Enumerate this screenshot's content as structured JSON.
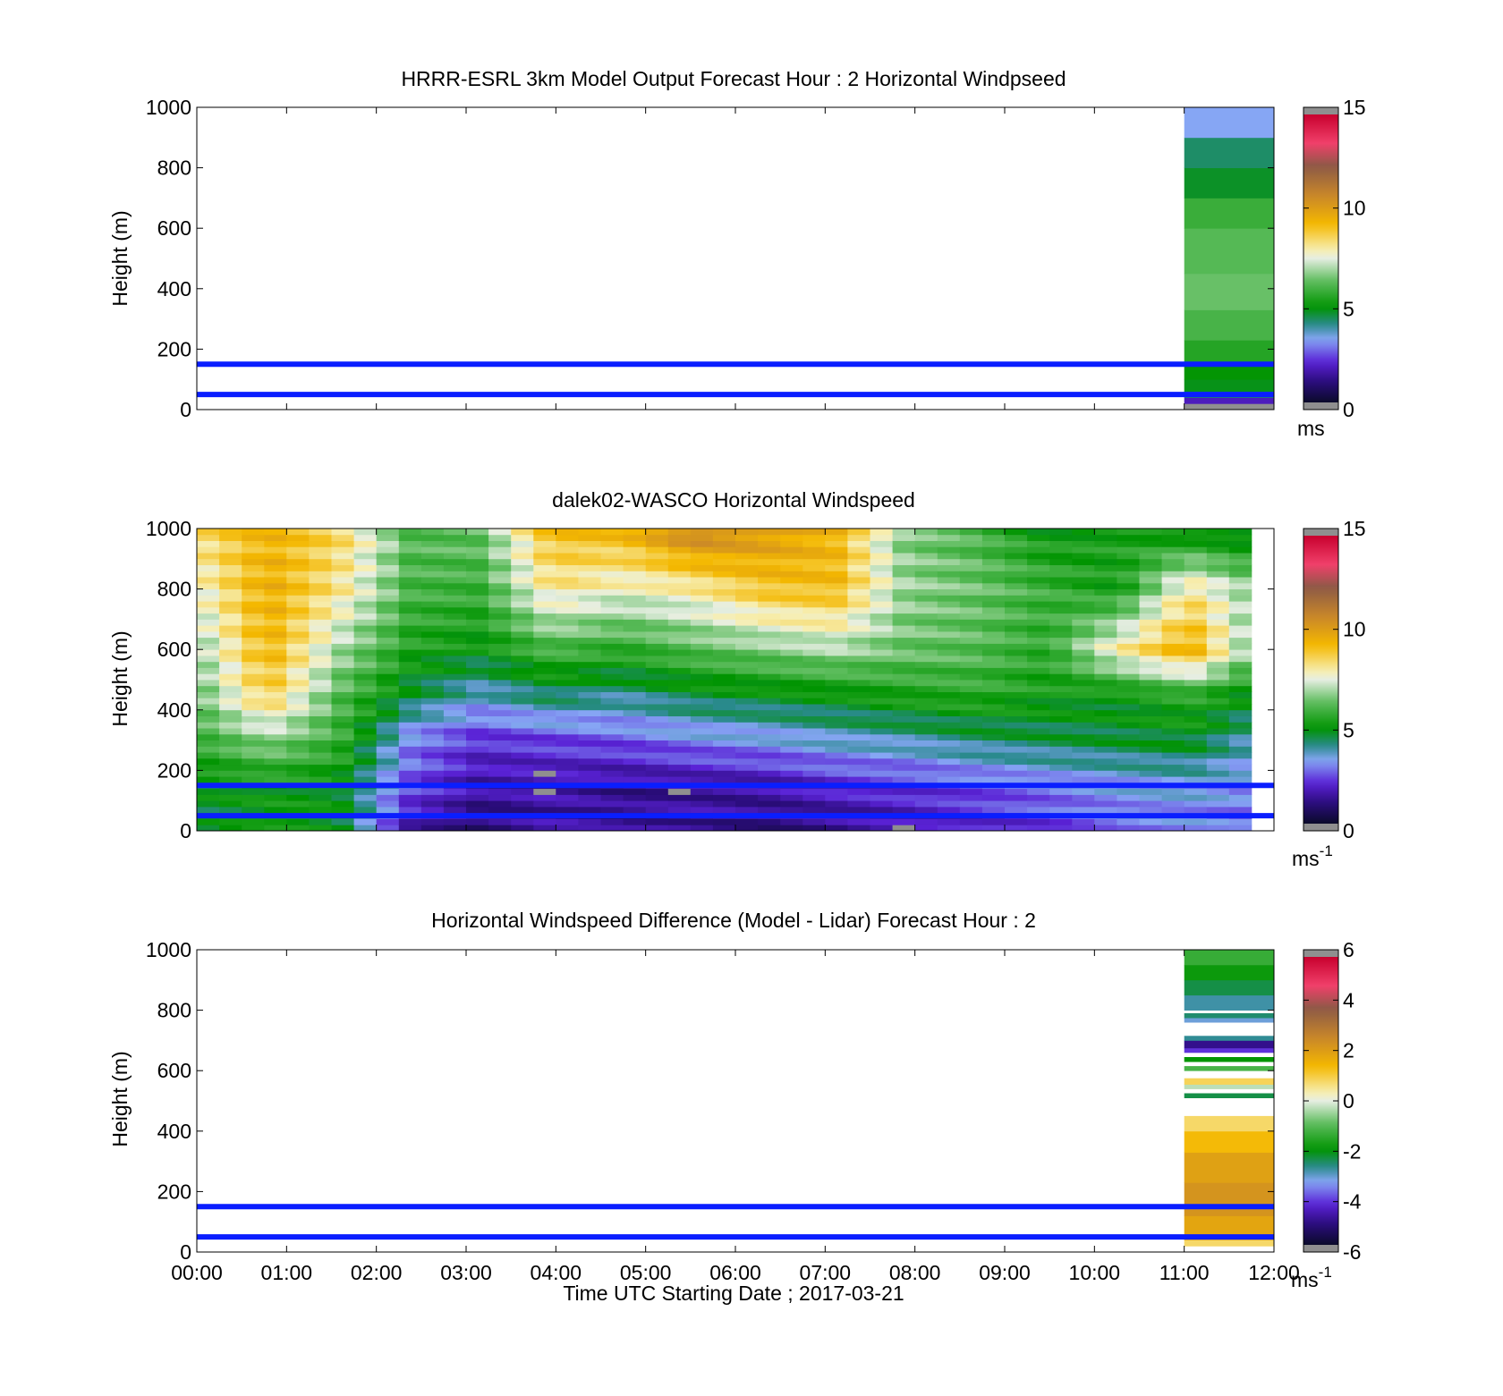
{
  "figure": {
    "xlabel": "Time UTC  Starting Date ; 2017-03-21",
    "reference_lines_m": [
      50,
      150
    ],
    "reference_line_color": "#0a1eff"
  },
  "chart_data": [
    {
      "type": "heatmap",
      "title": "HRRR-ESRL 3km Model Output   Forecast Hour : 2 Horizontal Windpseed",
      "ylabel": "Height (m)",
      "ylim": [
        0,
        1000
      ],
      "yticks": [
        "0",
        "200",
        "400",
        "600",
        "800",
        "1000"
      ],
      "xlim": [
        "00:00",
        "12:00"
      ],
      "xticks": [
        "00:00",
        "01:00",
        "02:00",
        "03:00",
        "04:00",
        "05:00",
        "06:00",
        "07:00",
        "08:00",
        "09:00",
        "10:00",
        "11:00",
        "12:00"
      ],
      "show_xticklabels": false,
      "colorbar": {
        "range": [
          0,
          15
        ],
        "ticks": [
          "0",
          "5",
          "10",
          "15"
        ],
        "label": "ms",
        "label_sup": ""
      },
      "columns": [
        {
          "t_start": 11.0,
          "t_end": 12.0,
          "layers": [
            {
              "z0": 0,
              "z1": 20,
              "v": -1
            },
            {
              "z0": 20,
              "z1": 40,
              "v": 1.8
            },
            {
              "z0": 40,
              "z1": 60,
              "v": 4.3
            },
            {
              "z0": 60,
              "z1": 100,
              "v": 4.8
            },
            {
              "z0": 100,
              "z1": 150,
              "v": 5.0
            },
            {
              "z0": 150,
              "z1": 230,
              "v": 5.5
            },
            {
              "z0": 230,
              "z1": 330,
              "v": 6.0
            },
            {
              "z0": 330,
              "z1": 450,
              "v": 6.4
            },
            {
              "z0": 450,
              "z1": 600,
              "v": 6.2
            },
            {
              "z0": 600,
              "z1": 700,
              "v": 5.8
            },
            {
              "z0": 700,
              "z1": 800,
              "v": 4.7
            },
            {
              "z0": 800,
              "z1": 900,
              "v": 4.3
            },
            {
              "z0": 900,
              "z1": 1000,
              "v": 3.3
            }
          ]
        }
      ]
    },
    {
      "type": "heatmap",
      "title": "dalek02-WASCO  Horizontal Windspeed",
      "ylabel": "Height (m)",
      "ylim": [
        0,
        1000
      ],
      "yticks": [
        "0",
        "200",
        "400",
        "600",
        "800",
        "1000"
      ],
      "xlim": [
        "00:00",
        "12:00"
      ],
      "xticks": [
        "00:00",
        "01:00",
        "02:00",
        "03:00",
        "04:00",
        "05:00",
        "06:00",
        "07:00",
        "08:00",
        "09:00",
        "10:00",
        "11:00",
        "12:00"
      ],
      "show_xticklabels": false,
      "colorbar": {
        "range": [
          0,
          15
        ],
        "ticks": [
          "0",
          "5",
          "10",
          "15"
        ],
        "label": "ms",
        "label_sup": "-1"
      },
      "time_step_hours": 0.25,
      "height_step_m": 20,
      "columns_end_hour": 11.85,
      "profiles": [
        {
          "z": 0,
          "v": [
            4.5,
            5.0,
            4.8,
            1.6,
            1.0,
            1.5,
            1.2,
            1.4,
            1.1,
            1.3,
            1.6,
            1.8,
            2.2,
            3.0,
            3.0,
            2.6
          ]
        },
        {
          "z": 150,
          "v": [
            4.8,
            5.1,
            5.0,
            2.6,
            1.5,
            1.6,
            1.3,
            1.5,
            1.6,
            2.0,
            2.2,
            2.6,
            3.0,
            3.2,
            3.4,
            3.0
          ]
        },
        {
          "z": 300,
          "v": [
            5.8,
            6.8,
            5.8,
            3.0,
            2.2,
            2.4,
            2.6,
            3.0,
            3.2,
            3.6,
            3.8,
            4.2,
            4.4,
            4.6,
            4.8,
            3.6
          ]
        },
        {
          "z": 450,
          "v": [
            6.4,
            8.8,
            6.2,
            4.6,
            3.6,
            4.4,
            4.0,
            4.6,
            4.8,
            5.0,
            5.4,
            5.6,
            5.2,
            5.0,
            5.6,
            4.8
          ]
        },
        {
          "z": 600,
          "v": [
            6.8,
            9.4,
            7.0,
            5.4,
            5.0,
            6.0,
            5.6,
            6.2,
            6.6,
            7.0,
            6.4,
            6.2,
            5.6,
            8.0,
            9.6,
            6.2
          ]
        },
        {
          "z": 800,
          "v": [
            7.6,
            9.6,
            8.2,
            6.0,
            5.8,
            8.2,
            7.6,
            8.0,
            9.0,
            9.2,
            6.8,
            6.4,
            5.8,
            5.2,
            8.2,
            6.6
          ]
        },
        {
          "z": 1000,
          "v": [
            8.4,
            9.4,
            8.6,
            6.2,
            6.4,
            9.2,
            9.4,
            11.0,
            10.2,
            9.4,
            6.6,
            6.0,
            5.0,
            5.4,
            4.6,
            4.4
          ]
        }
      ],
      "missing_cells": [
        {
          "t": 3.75,
          "z": 180
        },
        {
          "t": 3.75,
          "z": 120
        },
        {
          "t": 5.25,
          "z": 120
        },
        {
          "t": 7.75,
          "z": 0
        }
      ]
    },
    {
      "type": "heatmap",
      "title": "Horizontal Windspeed Difference (Model - Lidar) Forecast Hour : 2",
      "ylabel": "Height (m)",
      "ylim": [
        0,
        1000
      ],
      "yticks": [
        "0",
        "200",
        "400",
        "600",
        "800",
        "1000"
      ],
      "xlim": [
        "00:00",
        "12:00"
      ],
      "xticks": [
        "00:00",
        "01:00",
        "02:00",
        "03:00",
        "04:00",
        "05:00",
        "06:00",
        "07:00",
        "08:00",
        "09:00",
        "10:00",
        "11:00",
        "12:00"
      ],
      "show_xticklabels": true,
      "colorbar": {
        "range": [
          -6,
          6
        ],
        "ticks": [
          "-6",
          "-4",
          "-2",
          "0",
          "2",
          "4",
          "6"
        ],
        "label": "ms",
        "label_sup": "-1"
      },
      "columns": [
        {
          "t_start": 11.0,
          "t_end": 12.0,
          "layers": [
            {
              "z0": 20,
              "z1": 40,
              "v": 0.8
            },
            {
              "z0": 40,
              "z1": 120,
              "v": 1.9
            },
            {
              "z0": 120,
              "z1": 230,
              "v": 2.3
            },
            {
              "z0": 230,
              "z1": 330,
              "v": 2.0
            },
            {
              "z0": 330,
              "z1": 400,
              "v": 1.4
            },
            {
              "z0": 400,
              "z1": 450,
              "v": 0.8
            },
            {
              "z0": 510,
              "z1": 525,
              "v": -2.4
            },
            {
              "z0": 540,
              "z1": 555,
              "v": -0.3
            },
            {
              "z0": 555,
              "z1": 575,
              "v": 0.9
            },
            {
              "z0": 600,
              "z1": 615,
              "v": -1.2
            },
            {
              "z0": 630,
              "z1": 645,
              "v": -2.0
            },
            {
              "z0": 660,
              "z1": 675,
              "v": -4.2
            },
            {
              "z0": 675,
              "z1": 700,
              "v": -5.0
            },
            {
              "z0": 700,
              "z1": 715,
              "v": -2.8
            },
            {
              "z0": 760,
              "z1": 775,
              "v": -3.2
            },
            {
              "z0": 775,
              "z1": 790,
              "v": -2.6
            },
            {
              "z0": 800,
              "z1": 850,
              "v": -2.9
            },
            {
              "z0": 850,
              "z1": 900,
              "v": -2.4
            },
            {
              "z0": 900,
              "z1": 950,
              "v": -1.9
            },
            {
              "z0": 950,
              "z1": 1000,
              "v": -1.4
            }
          ]
        }
      ]
    }
  ]
}
